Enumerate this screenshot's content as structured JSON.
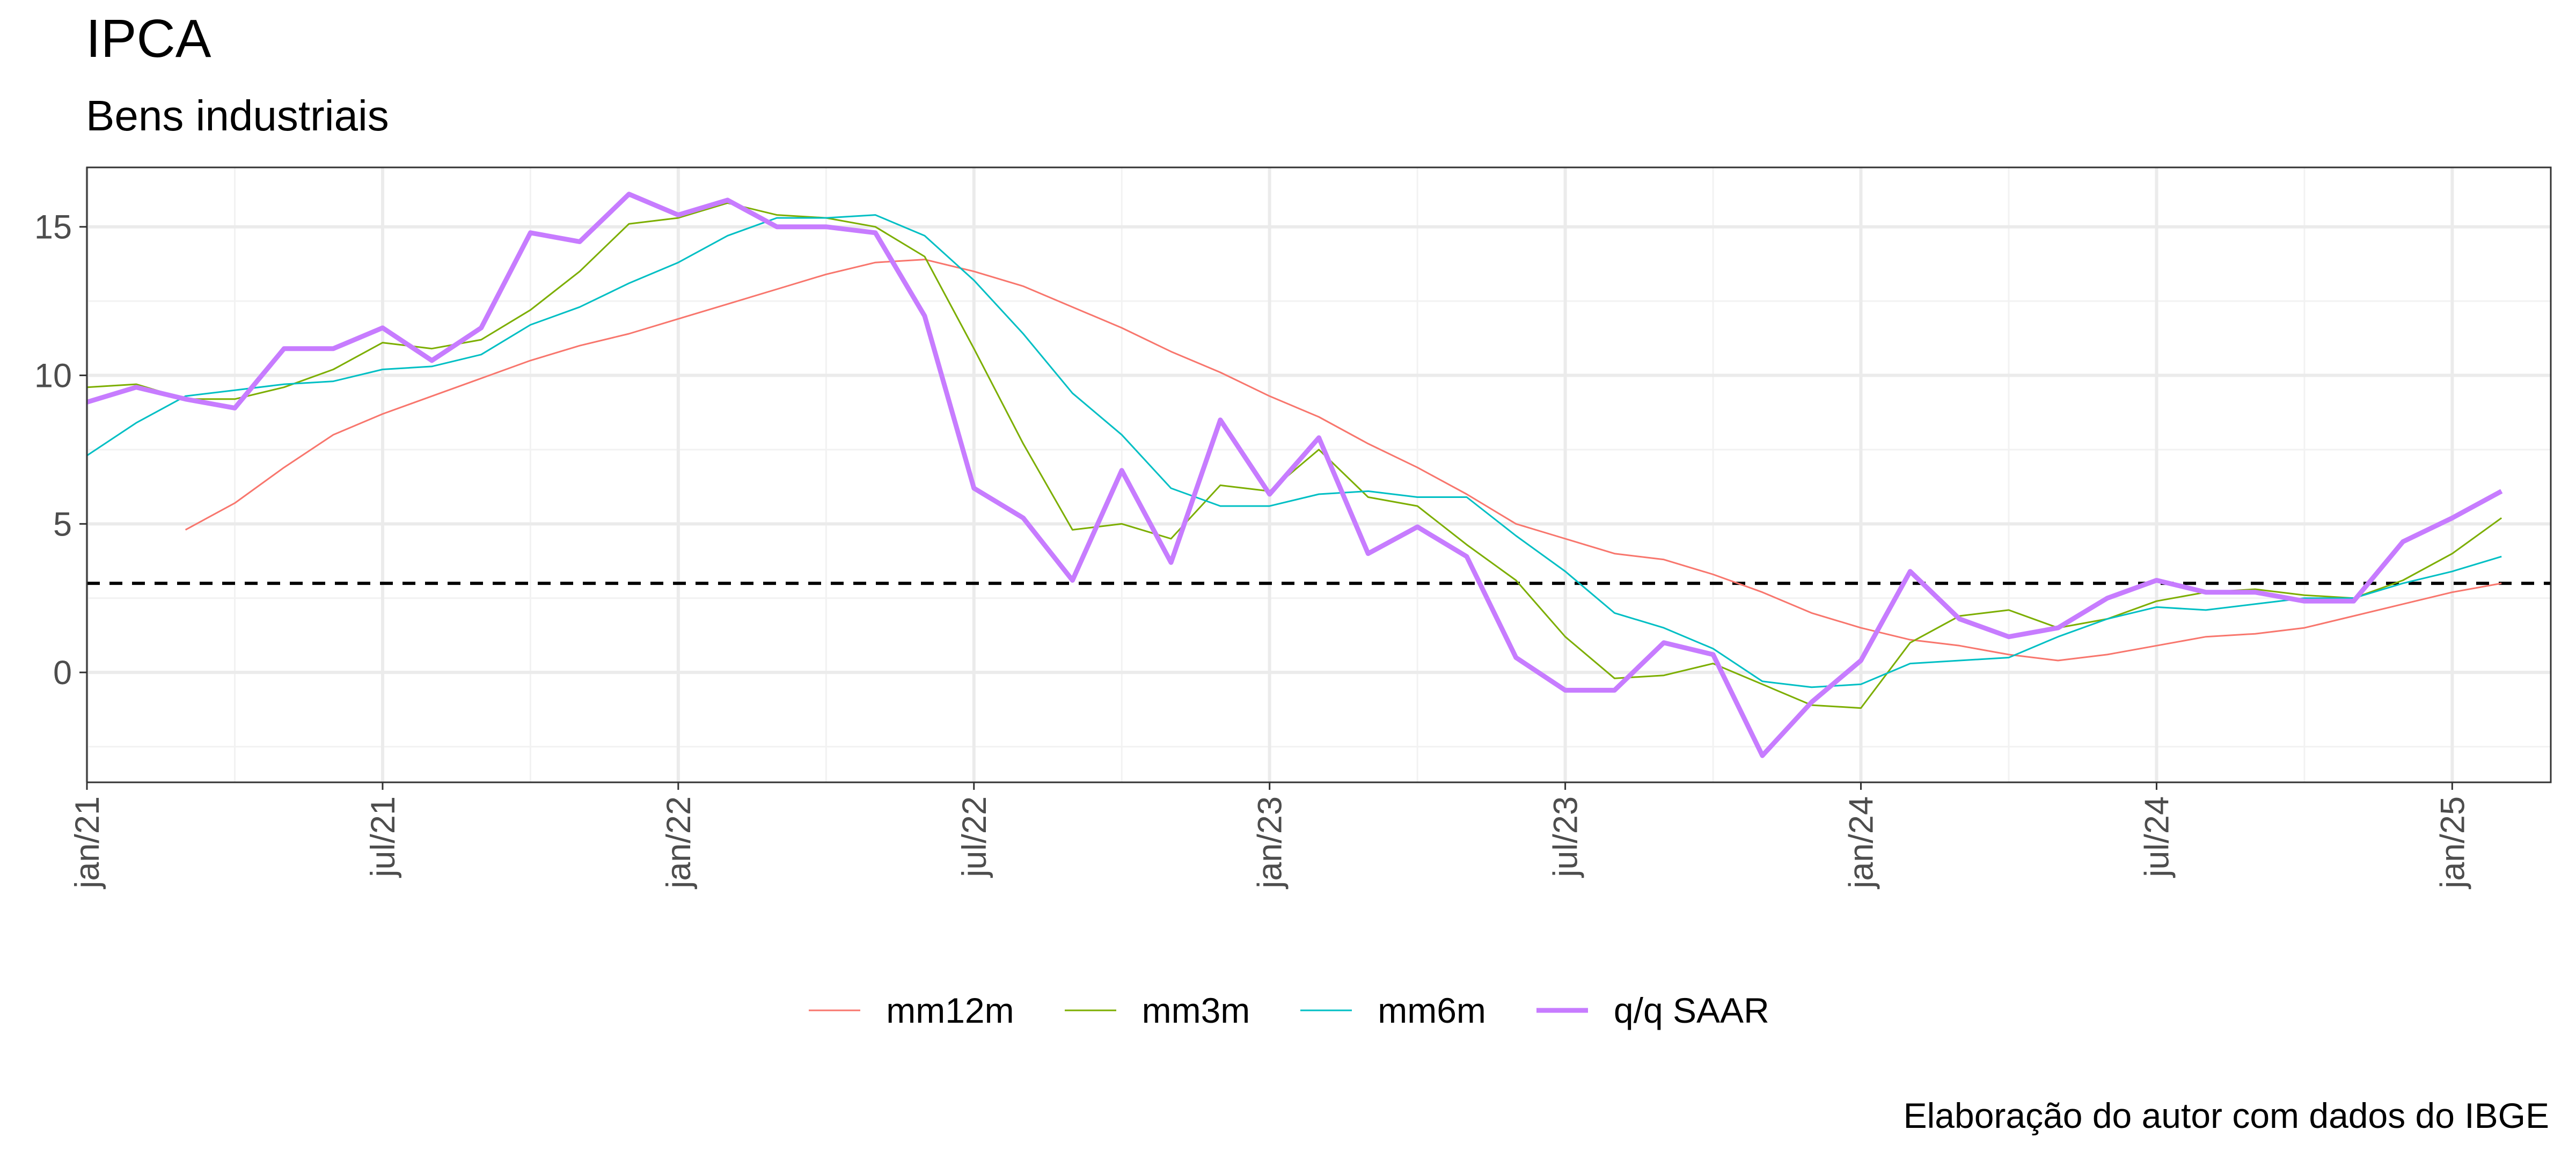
{
  "title": "IPCA",
  "subtitle": "Bens industriais",
  "caption": "Elaboração do autor com dados do IBGE",
  "chart_data": {
    "type": "line",
    "x_start": "2021-01",
    "x_end": "2025-03",
    "x_ticks": [
      {
        "date": "2021-01",
        "label": "jan/21"
      },
      {
        "date": "2021-07",
        "label": "jul/21"
      },
      {
        "date": "2022-01",
        "label": "jan/22"
      },
      {
        "date": "2022-07",
        "label": "jul/22"
      },
      {
        "date": "2023-01",
        "label": "jan/23"
      },
      {
        "date": "2023-07",
        "label": "jul/23"
      },
      {
        "date": "2024-01",
        "label": "jan/24"
      },
      {
        "date": "2024-07",
        "label": "jul/24"
      },
      {
        "date": "2025-01",
        "label": "jan/25"
      }
    ],
    "y_ticks": [
      0,
      5,
      10,
      15
    ],
    "ylim": [
      -3.7,
      17
    ],
    "grid": true,
    "legend_position": "bottom",
    "reference_line": {
      "y": 3,
      "style": "dashed",
      "color": "#000000"
    },
    "series": [
      {
        "name": "mm12m",
        "color": "#F8766D",
        "width": 3,
        "x": [
          "2021-03",
          "2021-04",
          "2021-05",
          "2021-06",
          "2021-07",
          "2021-08",
          "2021-09",
          "2021-10",
          "2021-11",
          "2021-12",
          "2022-01",
          "2022-02",
          "2022-03",
          "2022-04",
          "2022-05",
          "2022-06",
          "2022-07",
          "2022-08",
          "2022-09",
          "2022-10",
          "2022-11",
          "2022-12",
          "2023-01",
          "2023-02",
          "2023-03",
          "2023-04",
          "2023-05",
          "2023-06",
          "2023-07",
          "2023-08",
          "2023-09",
          "2023-10",
          "2023-11",
          "2023-12",
          "2024-01",
          "2024-02",
          "2024-03",
          "2024-04",
          "2024-05",
          "2024-06",
          "2024-07",
          "2024-08",
          "2024-09",
          "2024-10",
          "2024-11",
          "2024-12",
          "2025-01",
          "2025-02"
        ],
        "y": [
          4.8,
          5.7,
          6.9,
          8.0,
          8.7,
          9.3,
          9.9,
          10.5,
          11.0,
          11.4,
          11.9,
          12.4,
          12.9,
          13.4,
          13.8,
          13.9,
          13.5,
          13.0,
          12.3,
          11.6,
          10.8,
          10.1,
          9.3,
          8.6,
          7.7,
          6.9,
          6.0,
          5.0,
          4.5,
          4.0,
          3.8,
          3.3,
          2.7,
          2.0,
          1.5,
          1.1,
          0.9,
          0.6,
          0.4,
          0.6,
          0.9,
          1.2,
          1.3,
          1.5,
          1.9,
          2.3,
          2.7,
          3.0
        ]
      },
      {
        "name": "mm3m",
        "color": "#7CAE00",
        "width": 3,
        "x": [
          "2021-01",
          "2021-02",
          "2021-03",
          "2021-04",
          "2021-05",
          "2021-06",
          "2021-07",
          "2021-08",
          "2021-09",
          "2021-10",
          "2021-11",
          "2021-12",
          "2022-01",
          "2022-02",
          "2022-03",
          "2022-04",
          "2022-05",
          "2022-06",
          "2022-07",
          "2022-08",
          "2022-09",
          "2022-10",
          "2022-11",
          "2022-12",
          "2023-01",
          "2023-02",
          "2023-03",
          "2023-04",
          "2023-05",
          "2023-06",
          "2023-07",
          "2023-08",
          "2023-09",
          "2023-10",
          "2023-11",
          "2023-12",
          "2024-01",
          "2024-02",
          "2024-03",
          "2024-04",
          "2024-05",
          "2024-06",
          "2024-07",
          "2024-08",
          "2024-09",
          "2024-10",
          "2024-11",
          "2024-12",
          "2025-01",
          "2025-02"
        ],
        "y": [
          9.6,
          9.7,
          9.2,
          9.2,
          9.6,
          10.2,
          11.1,
          10.9,
          11.2,
          12.2,
          13.5,
          15.1,
          15.3,
          15.8,
          15.4,
          15.3,
          15.0,
          14.0,
          10.9,
          7.7,
          4.8,
          5.0,
          4.5,
          6.3,
          6.1,
          7.5,
          5.9,
          5.6,
          4.3,
          3.1,
          1.2,
          -0.2,
          -0.1,
          0.3,
          -0.4,
          -1.1,
          -1.2,
          1.0,
          1.9,
          2.1,
          1.5,
          1.8,
          2.4,
          2.7,
          2.8,
          2.6,
          2.5,
          3.1,
          4.0,
          5.2
        ]
      },
      {
        "name": "mm6m",
        "color": "#00BFC4",
        "width": 3,
        "x": [
          "2021-01",
          "2021-02",
          "2021-03",
          "2021-04",
          "2021-05",
          "2021-06",
          "2021-07",
          "2021-08",
          "2021-09",
          "2021-10",
          "2021-11",
          "2021-12",
          "2022-01",
          "2022-02",
          "2022-03",
          "2022-04",
          "2022-05",
          "2022-06",
          "2022-07",
          "2022-08",
          "2022-09",
          "2022-10",
          "2022-11",
          "2022-12",
          "2023-01",
          "2023-02",
          "2023-03",
          "2023-04",
          "2023-05",
          "2023-06",
          "2023-07",
          "2023-08",
          "2023-09",
          "2023-10",
          "2023-11",
          "2023-12",
          "2024-01",
          "2024-02",
          "2024-03",
          "2024-04",
          "2024-05",
          "2024-06",
          "2024-07",
          "2024-08",
          "2024-09",
          "2024-10",
          "2024-11",
          "2024-12",
          "2025-01",
          "2025-02"
        ],
        "y": [
          7.3,
          8.4,
          9.3,
          9.5,
          9.7,
          9.8,
          10.2,
          10.3,
          10.7,
          11.7,
          12.3,
          13.1,
          13.8,
          14.7,
          15.3,
          15.3,
          15.4,
          14.7,
          13.2,
          11.4,
          9.4,
          8.0,
          6.2,
          5.6,
          5.6,
          6.0,
          6.1,
          5.9,
          5.9,
          4.6,
          3.4,
          2.0,
          1.5,
          0.8,
          -0.3,
          -0.5,
          -0.4,
          0.3,
          0.4,
          0.5,
          1.2,
          1.8,
          2.2,
          2.1,
          2.3,
          2.5,
          2.5,
          3.0,
          3.4,
          3.9
        ]
      },
      {
        "name": "q/q SAAR",
        "color": "#C77CFF",
        "width": 9,
        "x": [
          "2021-01",
          "2021-02",
          "2021-03",
          "2021-04",
          "2021-05",
          "2021-06",
          "2021-07",
          "2021-08",
          "2021-09",
          "2021-10",
          "2021-11",
          "2021-12",
          "2022-01",
          "2022-02",
          "2022-03",
          "2022-04",
          "2022-05",
          "2022-06",
          "2022-07",
          "2022-08",
          "2022-09",
          "2022-10",
          "2022-11",
          "2022-12",
          "2023-01",
          "2023-02",
          "2023-03",
          "2023-04",
          "2023-05",
          "2023-06",
          "2023-07",
          "2023-08",
          "2023-09",
          "2023-10",
          "2023-11",
          "2023-12",
          "2024-01",
          "2024-02",
          "2024-03",
          "2024-04",
          "2024-05",
          "2024-06",
          "2024-07",
          "2024-08",
          "2024-09",
          "2024-10",
          "2024-11",
          "2024-12",
          "2025-01",
          "2025-02"
        ],
        "y": [
          9.1,
          9.6,
          9.2,
          8.9,
          10.9,
          10.9,
          11.6,
          10.5,
          11.6,
          14.8,
          14.5,
          16.1,
          15.4,
          15.9,
          15.0,
          15.0,
          14.8,
          12.0,
          6.2,
          5.2,
          3.1,
          6.8,
          3.7,
          8.5,
          6.0,
          7.9,
          4.0,
          4.9,
          3.9,
          0.5,
          -0.6,
          -0.6,
          1.0,
          0.6,
          -2.8,
          -1.0,
          0.4,
          3.4,
          1.8,
          1.2,
          1.5,
          2.5,
          3.1,
          2.7,
          2.7,
          2.4,
          2.4,
          4.4,
          5.2,
          6.1
        ]
      }
    ]
  }
}
